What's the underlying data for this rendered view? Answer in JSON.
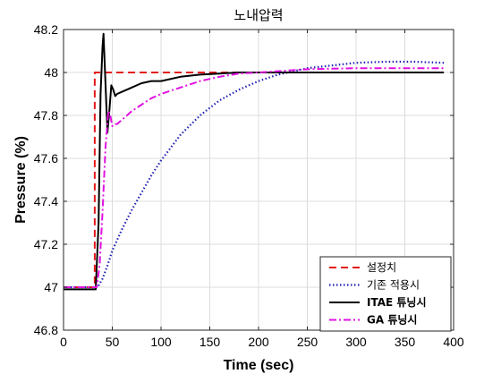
{
  "chart_data": {
    "type": "line",
    "title": "노내압력",
    "xlabel": "Time (sec)",
    "ylabel": "Pressure (%)",
    "xlim": [
      0,
      400
    ],
    "ylim": [
      46.8,
      48.2
    ],
    "xticks": [
      0,
      50,
      100,
      150,
      200,
      250,
      300,
      350,
      400
    ],
    "yticks": [
      46.8,
      47,
      47.2,
      47.4,
      47.6,
      47.8,
      48,
      48.2
    ],
    "xtick_labels": [
      "0",
      "50",
      "100",
      "150",
      "200",
      "250",
      "300",
      "350",
      "400"
    ],
    "ytick_labels": [
      "46.8",
      "47",
      "47.2",
      "47.4",
      "47.6",
      "47.8",
      "48",
      "48.2"
    ],
    "grid": true,
    "legend_position": "bottom-right",
    "series": [
      {
        "name": "설정치",
        "color": "#e41a1c",
        "style": "dashed",
        "x": [
          0,
          32,
          32,
          390
        ],
        "y": [
          47.0,
          47.0,
          48.0,
          48.0
        ]
      },
      {
        "name": "기존 적용시",
        "color": "#1f1fb4",
        "style": "dotted",
        "x": [
          0,
          35,
          40,
          45,
          50,
          60,
          70,
          80,
          90,
          100,
          120,
          140,
          160,
          180,
          200,
          220,
          250,
          280,
          300,
          330,
          360,
          390
        ],
        "y": [
          47.0,
          47.0,
          47.04,
          47.1,
          47.17,
          47.27,
          47.36,
          47.44,
          47.52,
          47.59,
          47.71,
          47.8,
          47.87,
          47.92,
          47.96,
          47.99,
          48.02,
          48.035,
          48.045,
          48.05,
          48.05,
          48.045
        ]
      },
      {
        "name": "ITAE 튜닝시",
        "color": "#000000",
        "style": "solid",
        "x": [
          0,
          33,
          36,
          38,
          40,
          41,
          43,
          45,
          47,
          49,
          51,
          53,
          55,
          60,
          65,
          70,
          80,
          90,
          100,
          120,
          140,
          160,
          180,
          200,
          250,
          300,
          350,
          390
        ],
        "y": [
          46.99,
          46.99,
          47.3,
          47.9,
          48.12,
          48.18,
          47.95,
          47.72,
          47.82,
          47.94,
          47.92,
          47.89,
          47.9,
          47.91,
          47.92,
          47.93,
          47.95,
          47.96,
          47.96,
          47.98,
          47.99,
          47.995,
          48.0,
          48.0,
          48.0,
          48.0,
          48.0,
          48.0
        ]
      },
      {
        "name": "GA 튜닝시",
        "color": "#e012e0",
        "style": "dashdot",
        "x": [
          0,
          34,
          37,
          40,
          43,
          46,
          48,
          50,
          52,
          55,
          60,
          65,
          70,
          80,
          90,
          100,
          120,
          140,
          160,
          180,
          200,
          250,
          300,
          350,
          390
        ],
        "y": [
          47.0,
          47.0,
          47.1,
          47.35,
          47.65,
          47.82,
          47.8,
          47.75,
          47.76,
          47.76,
          47.78,
          47.8,
          47.82,
          47.85,
          47.88,
          47.9,
          47.93,
          47.96,
          47.98,
          47.995,
          48.0,
          48.015,
          48.02,
          48.02,
          48.02
        ]
      }
    ]
  }
}
